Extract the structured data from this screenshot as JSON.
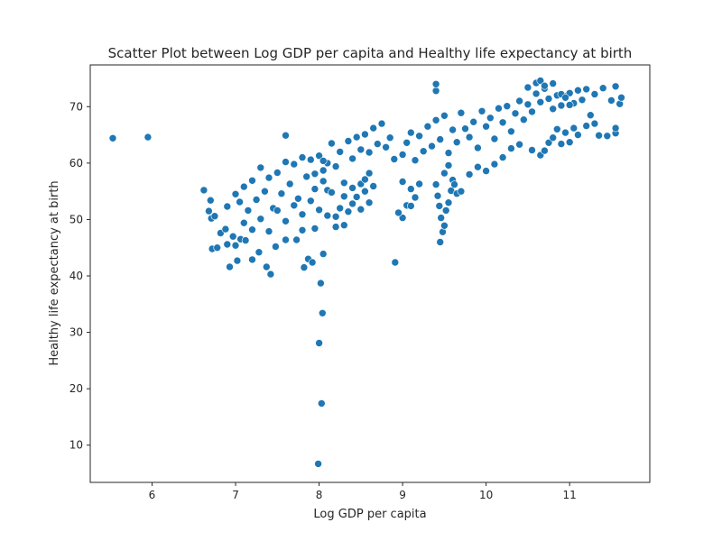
{
  "chart_data": {
    "type": "scatter",
    "title": "Scatter Plot between Log GDP per capita and Healthy life expectancy at birth",
    "xlabel": "Log GDP per capita",
    "ylabel": "Healthy life expectancy at birth",
    "xlim": [
      5.26,
      11.96
    ],
    "ylim": [
      3.4,
      77.4
    ],
    "xticks": [
      6,
      7,
      8,
      9,
      10,
      11
    ],
    "yticks": [
      10,
      20,
      30,
      40,
      50,
      60,
      70
    ],
    "grid": false,
    "legend": "none",
    "point_color": "#1f77b4",
    "series": [
      {
        "values": [
          [
            5.53,
            64.4
          ],
          [
            5.95,
            64.6
          ],
          [
            6.62,
            55.2
          ],
          [
            6.7,
            53.4
          ],
          [
            6.68,
            51.5
          ],
          [
            6.71,
            50.2
          ],
          [
            6.75,
            50.6
          ],
          [
            6.72,
            44.8
          ],
          [
            6.78,
            45.0
          ],
          [
            6.82,
            47.6
          ],
          [
            6.88,
            48.3
          ],
          [
            6.9,
            45.6
          ],
          [
            6.93,
            41.6
          ],
          [
            6.97,
            47.0
          ],
          [
            7.0,
            45.4
          ],
          [
            7.02,
            42.7
          ],
          [
            7.06,
            46.5
          ],
          [
            7.12,
            46.3
          ],
          [
            7.2,
            42.9
          ],
          [
            7.28,
            44.2
          ],
          [
            7.37,
            41.6
          ],
          [
            7.42,
            40.3
          ],
          [
            7.48,
            45.2
          ],
          [
            7.6,
            46.4
          ],
          [
            7.73,
            46.4
          ],
          [
            7.82,
            41.5
          ],
          [
            7.87,
            43.0
          ],
          [
            7.92,
            42.4
          ],
          [
            7.8,
            48.1
          ],
          [
            7.95,
            48.4
          ],
          [
            8.05,
            43.9
          ],
          [
            8.02,
            38.7
          ],
          [
            8.04,
            33.4
          ],
          [
            8.0,
            28.1
          ],
          [
            8.03,
            17.4
          ],
          [
            7.99,
            6.7
          ],
          [
            8.91,
            42.4
          ],
          [
            7.6,
            64.9
          ],
          [
            6.9,
            52.3
          ],
          [
            7.0,
            54.5
          ],
          [
            7.05,
            53.1
          ],
          [
            7.1,
            55.8
          ],
          [
            7.15,
            51.6
          ],
          [
            7.2,
            56.9
          ],
          [
            7.25,
            53.5
          ],
          [
            7.3,
            59.2
          ],
          [
            7.35,
            55.0
          ],
          [
            7.4,
            57.4
          ],
          [
            7.45,
            52.0
          ],
          [
            7.5,
            58.3
          ],
          [
            7.55,
            54.6
          ],
          [
            7.6,
            60.2
          ],
          [
            7.65,
            56.3
          ],
          [
            7.7,
            59.8
          ],
          [
            7.75,
            53.7
          ],
          [
            7.8,
            61.0
          ],
          [
            7.85,
            57.6
          ],
          [
            7.9,
            60.6
          ],
          [
            7.95,
            55.4
          ],
          [
            8.0,
            61.3
          ],
          [
            8.05,
            58.7
          ],
          [
            8.1,
            60.0
          ],
          [
            8.15,
            63.5
          ],
          [
            8.2,
            59.4
          ],
          [
            8.25,
            62.0
          ],
          [
            8.3,
            56.5
          ],
          [
            8.35,
            63.9
          ],
          [
            8.4,
            60.8
          ],
          [
            8.45,
            64.6
          ],
          [
            8.5,
            62.4
          ],
          [
            8.55,
            65.1
          ],
          [
            8.6,
            61.9
          ],
          [
            8.65,
            66.2
          ],
          [
            8.7,
            63.4
          ],
          [
            8.75,
            67.0
          ],
          [
            8.8,
            62.8
          ],
          [
            8.85,
            64.5
          ],
          [
            8.9,
            60.7
          ],
          [
            7.1,
            49.4
          ],
          [
            7.2,
            48.2
          ],
          [
            7.3,
            50.1
          ],
          [
            7.4,
            47.9
          ],
          [
            7.5,
            51.6
          ],
          [
            7.6,
            49.7
          ],
          [
            7.7,
            52.5
          ],
          [
            7.8,
            50.9
          ],
          [
            7.9,
            53.3
          ],
          [
            8.0,
            51.7
          ],
          [
            8.1,
            55.2
          ],
          [
            8.2,
            48.7
          ],
          [
            8.3,
            54.1
          ],
          [
            8.4,
            52.8
          ],
          [
            8.5,
            56.3
          ],
          [
            8.6,
            53.0
          ],
          [
            8.2,
            50.5
          ],
          [
            8.25,
            52.0
          ],
          [
            8.3,
            49.0
          ],
          [
            8.35,
            51.4
          ],
          [
            8.4,
            55.6
          ],
          [
            8.45,
            54.0
          ],
          [
            8.5,
            51.8
          ],
          [
            8.55,
            57.1
          ],
          [
            8.6,
            58.2
          ],
          [
            8.55,
            55.0
          ],
          [
            8.15,
            54.8
          ],
          [
            8.1,
            50.7
          ],
          [
            8.05,
            56.8
          ],
          [
            7.95,
            58.1
          ],
          [
            8.05,
            60.4
          ],
          [
            8.65,
            55.9
          ],
          [
            9.0,
            61.5
          ],
          [
            9.05,
            63.6
          ],
          [
            9.1,
            65.4
          ],
          [
            9.15,
            60.5
          ],
          [
            9.2,
            64.8
          ],
          [
            9.25,
            62.1
          ],
          [
            9.3,
            66.5
          ],
          [
            9.35,
            63.0
          ],
          [
            9.4,
            67.6
          ],
          [
            9.45,
            64.2
          ],
          [
            9.5,
            68.4
          ],
          [
            9.55,
            61.8
          ],
          [
            9.6,
            65.9
          ],
          [
            9.65,
            63.7
          ],
          [
            9.7,
            68.9
          ],
          [
            9.75,
            66.1
          ],
          [
            9.8,
            64.6
          ],
          [
            9.85,
            67.3
          ],
          [
            9.9,
            62.7
          ],
          [
            9.95,
            69.2
          ],
          [
            10.0,
            66.5
          ],
          [
            10.05,
            68.0
          ],
          [
            10.1,
            64.3
          ],
          [
            10.15,
            69.7
          ],
          [
            10.2,
            67.2
          ],
          [
            10.25,
            70.1
          ],
          [
            10.3,
            65.6
          ],
          [
            10.35,
            68.8
          ],
          [
            10.4,
            71.0
          ],
          [
            10.45,
            67.7
          ],
          [
            10.5,
            70.4
          ],
          [
            10.55,
            69.1
          ],
          [
            10.6,
            72.3
          ],
          [
            10.65,
            70.8
          ],
          [
            10.7,
            73.2
          ],
          [
            10.75,
            71.4
          ],
          [
            10.8,
            69.6
          ],
          [
            10.85,
            72.0
          ],
          [
            10.9,
            70.2
          ],
          [
            10.95,
            71.8
          ],
          [
            11.0,
            72.4
          ],
          [
            11.05,
            70.6
          ],
          [
            11.1,
            72.9
          ],
          [
            11.15,
            71.2
          ],
          [
            11.2,
            73.1
          ],
          [
            11.3,
            72.2
          ],
          [
            11.4,
            73.3
          ],
          [
            11.5,
            71.1
          ],
          [
            11.55,
            73.6
          ],
          [
            11.6,
            70.5
          ],
          [
            11.62,
            71.6
          ],
          [
            11.45,
            64.8
          ],
          [
            11.55,
            65.3
          ],
          [
            11.35,
            64.9
          ],
          [
            11.55,
            66.2
          ],
          [
            9.2,
            56.3
          ],
          [
            9.15,
            53.9
          ],
          [
            9.1,
            55.4
          ],
          [
            9.0,
            50.3
          ],
          [
            9.05,
            52.5
          ],
          [
            8.95,
            51.2
          ],
          [
            9.1,
            52.4
          ],
          [
            9.0,
            56.7
          ],
          [
            9.4,
            56.2
          ],
          [
            9.42,
            54.2
          ],
          [
            9.44,
            52.4
          ],
          [
            9.46,
            50.3
          ],
          [
            9.48,
            47.8
          ],
          [
            9.45,
            46.0
          ],
          [
            9.5,
            48.9
          ],
          [
            9.52,
            51.6
          ],
          [
            9.55,
            53.0
          ],
          [
            9.58,
            55.1
          ],
          [
            9.6,
            57.0
          ],
          [
            9.62,
            56.2
          ],
          [
            9.65,
            54.6
          ],
          [
            9.7,
            55.0
          ],
          [
            9.5,
            58.2
          ],
          [
            9.55,
            59.6
          ],
          [
            9.4,
            72.8
          ],
          [
            9.4,
            74.0
          ],
          [
            9.8,
            58.0
          ],
          [
            9.9,
            59.3
          ],
          [
            10.0,
            58.6
          ],
          [
            10.1,
            59.8
          ],
          [
            10.2,
            61.0
          ],
          [
            10.3,
            62.6
          ],
          [
            10.4,
            63.3
          ],
          [
            10.55,
            62.3
          ],
          [
            10.65,
            61.4
          ],
          [
            10.7,
            62.2
          ],
          [
            10.75,
            63.6
          ],
          [
            10.8,
            64.5
          ],
          [
            10.85,
            66.0
          ],
          [
            10.9,
            63.4
          ],
          [
            10.95,
            65.4
          ],
          [
            11.0,
            63.7
          ],
          [
            11.05,
            66.2
          ],
          [
            11.1,
            65.0
          ],
          [
            11.2,
            66.6
          ],
          [
            11.25,
            68.5
          ],
          [
            11.3,
            67.0
          ],
          [
            10.6,
            74.2
          ],
          [
            10.65,
            74.6
          ],
          [
            10.7,
            73.7
          ],
          [
            10.5,
            73.4
          ],
          [
            10.8,
            74.1
          ],
          [
            10.9,
            72.2
          ],
          [
            10.95,
            71.6
          ],
          [
            11.0,
            70.3
          ]
        ]
      }
    ]
  }
}
